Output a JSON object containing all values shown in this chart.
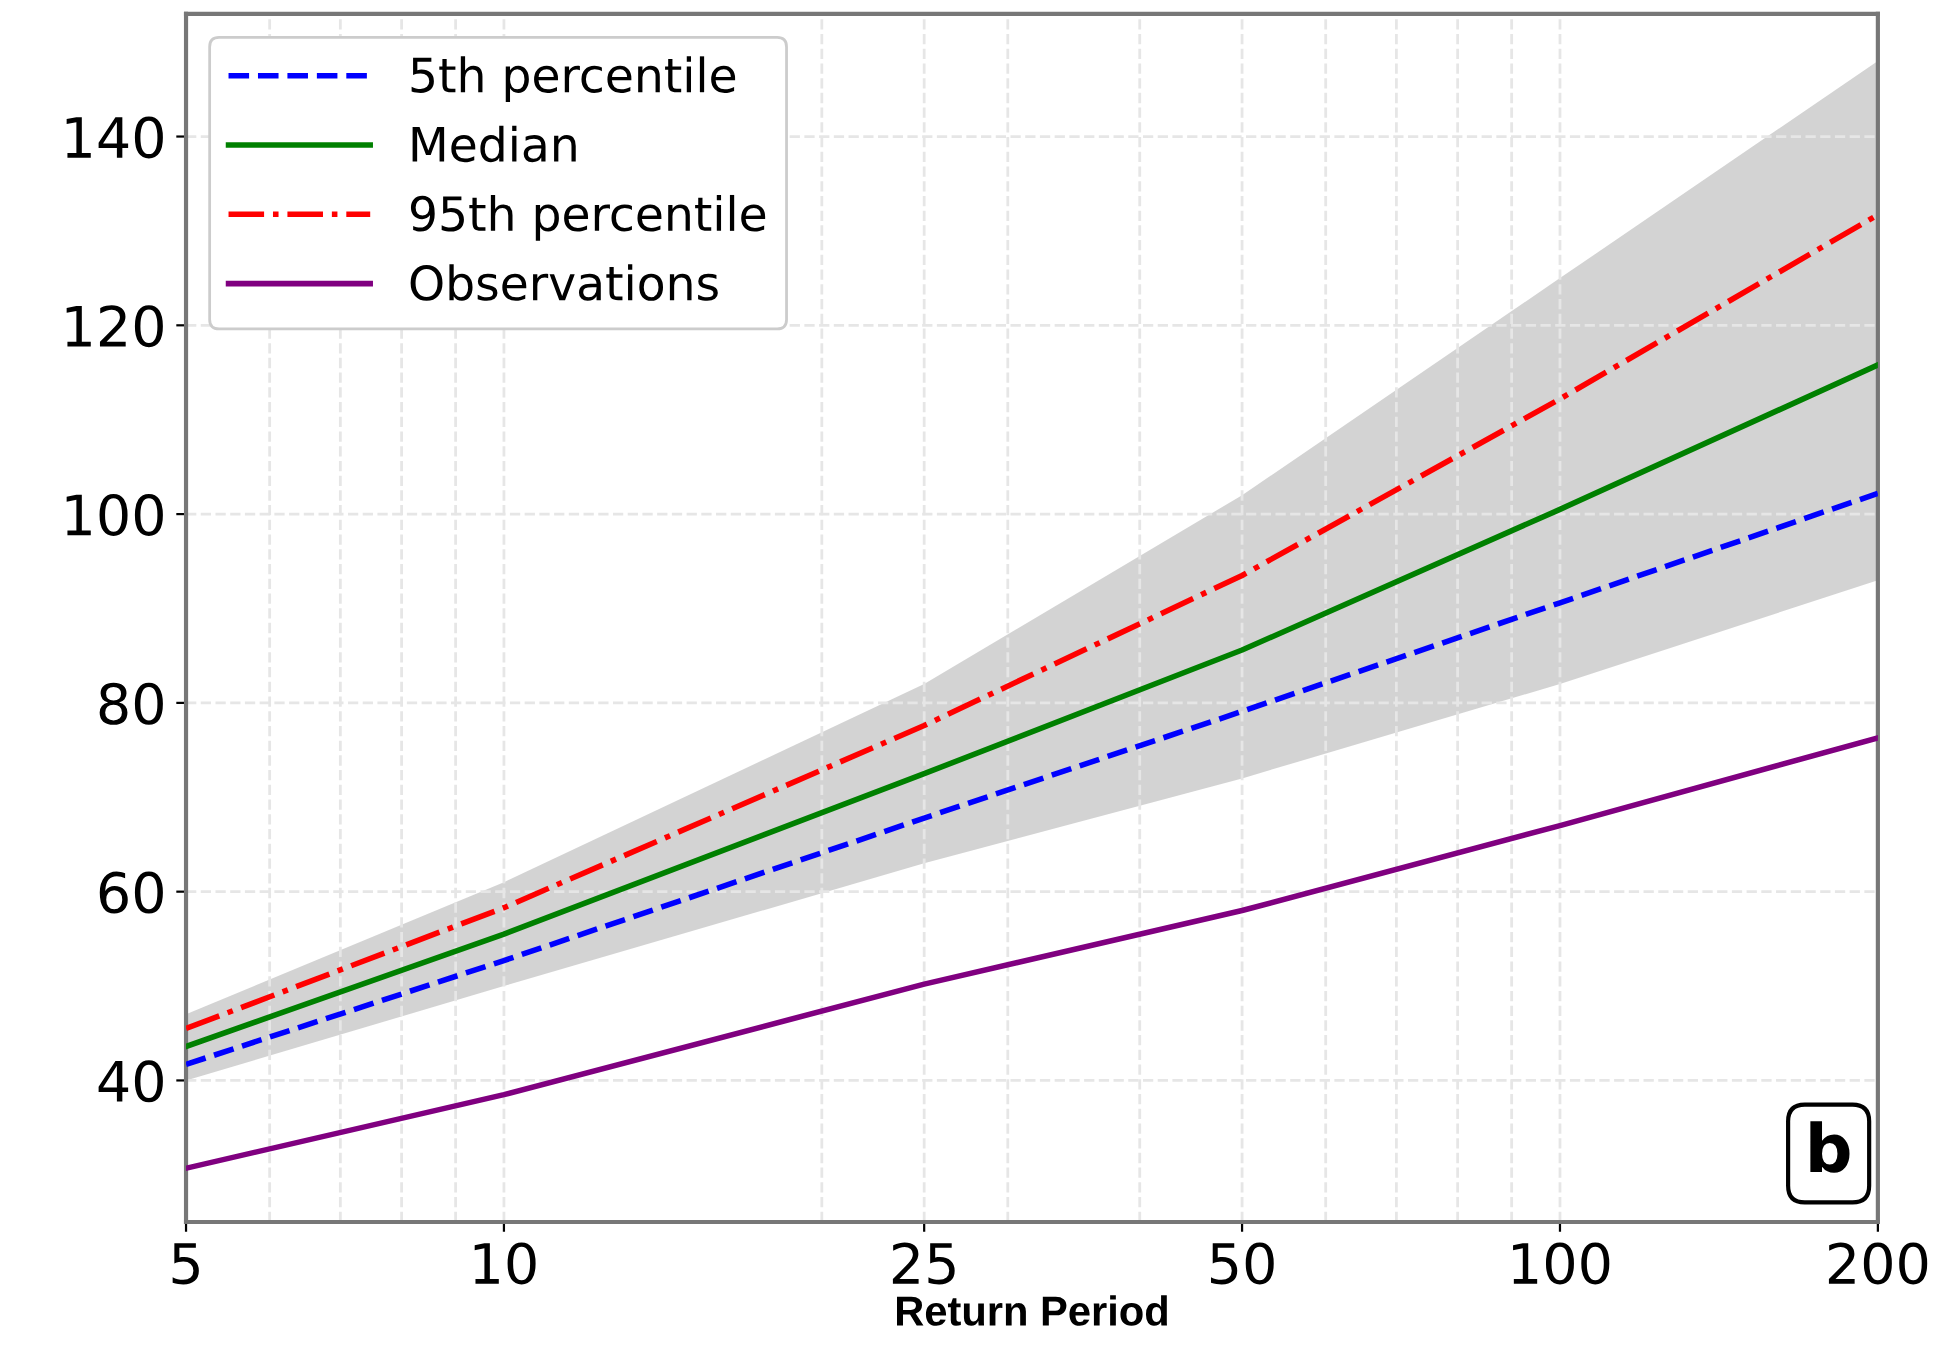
{
  "chart_data": {
    "type": "line",
    "xlabel": "Return Period",
    "log": "x",
    "x": [
      5,
      10,
      25,
      50,
      100,
      200
    ],
    "series": [
      {
        "name": "5th percentile",
        "color": "#0000ff",
        "line_style": "dashed",
        "values": [
          41.7,
          52.7,
          67.8,
          79.1,
          90.6,
          102.2
        ]
      },
      {
        "name": "Median",
        "color": "#008000",
        "line_style": "solid",
        "values": [
          43.6,
          55.5,
          72.5,
          85.6,
          100.5,
          115.8
        ],
        "lower": [
          40,
          50,
          63,
          72,
          82,
          93
        ],
        "upper": [
          47,
          61,
          82,
          102,
          125,
          148
        ]
      },
      {
        "name": "95th percentile",
        "color": "#ff0000",
        "line_style": "dashdot",
        "values": [
          45.5,
          58.3,
          77.6,
          93.5,
          112.2,
          131.7
        ]
      },
      {
        "name": "Observations",
        "color": "#800080",
        "line_style": "solid",
        "values": [
          30.7,
          38.5,
          50.2,
          58.0,
          67.0,
          76.3
        ]
      }
    ],
    "xlim": [
      5,
      200
    ],
    "xticks": [
      5,
      10,
      25,
      50,
      100,
      200
    ],
    "ylim": [
      25,
      153
    ],
    "yticks": [
      40,
      60,
      80,
      100,
      120,
      140
    ],
    "grid": true,
    "legend": "top left",
    "marker": "none",
    "annotations": [
      "b"
    ]
  }
}
